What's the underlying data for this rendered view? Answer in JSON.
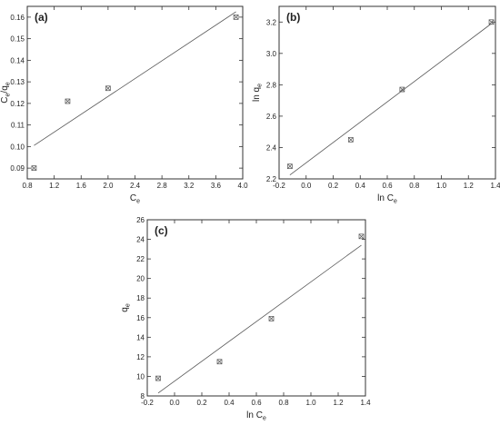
{
  "chart_data": [
    {
      "type": "scatter",
      "panel_label": "(a)",
      "xlabel": "C",
      "xlabel_sub": "e",
      "ylabel_parts": [
        [
          "C",
          "e"
        ],
        [
          "/q",
          "e"
        ]
      ],
      "xlim": [
        0.8,
        4.0
      ],
      "ylim": [
        0.085,
        0.165
      ],
      "xticks": [
        "0.8",
        "1.2",
        "1.6",
        "2.0",
        "2.4",
        "2.8",
        "3.2",
        "3.6",
        "4.0"
      ],
      "yticks": [
        "0.09",
        "0.10",
        "0.11",
        "0.12",
        "0.13",
        "0.14",
        "0.15",
        "0.16"
      ],
      "points": [
        {
          "x": 0.9,
          "y": 0.09
        },
        {
          "x": 1.4,
          "y": 0.121
        },
        {
          "x": 2.0,
          "y": 0.127
        },
        {
          "x": 3.9,
          "y": 0.16
        }
      ],
      "fit_line": {
        "x": [
          0.9,
          3.9
        ],
        "y": [
          0.1005,
          0.1625
        ]
      }
    },
    {
      "type": "scatter",
      "panel_label": "(b)",
      "xlabel": "ln C",
      "xlabel_sub": "e",
      "ylabel_parts": [
        [
          "ln q",
          "e"
        ]
      ],
      "xlim": [
        -0.2,
        1.4
      ],
      "ylim": [
        2.2,
        3.3
      ],
      "xticks": [
        "-0.2",
        "0.0",
        "0.2",
        "0.4",
        "0.6",
        "0.8",
        "1.0",
        "1.2",
        "1.4"
      ],
      "yticks": [
        "2.2",
        "2.4",
        "2.6",
        "2.8",
        "3.0",
        "3.2"
      ],
      "points": [
        {
          "x": -0.12,
          "y": 2.28
        },
        {
          "x": 0.33,
          "y": 2.45
        },
        {
          "x": 0.71,
          "y": 2.77
        },
        {
          "x": 1.37,
          "y": 3.2
        }
      ],
      "fit_line": {
        "x": [
          -0.12,
          1.37
        ],
        "y": [
          2.225,
          3.19
        ]
      }
    },
    {
      "type": "scatter",
      "panel_label": "(c)",
      "xlabel": "ln C",
      "xlabel_sub": "e",
      "ylabel_parts": [
        [
          "q",
          "e"
        ]
      ],
      "xlim": [
        -0.2,
        1.4
      ],
      "ylim": [
        8,
        26
      ],
      "xticks": [
        "-0.2",
        "0.0",
        "0.2",
        "0.4",
        "0.6",
        "0.8",
        "1.0",
        "1.2",
        "1.4"
      ],
      "yticks": [
        "8",
        "10",
        "12",
        "14",
        "16",
        "18",
        "20",
        "22",
        "24",
        "26"
      ],
      "points": [
        {
          "x": -0.12,
          "y": 9.8
        },
        {
          "x": 0.33,
          "y": 11.5
        },
        {
          "x": 0.71,
          "y": 15.9
        },
        {
          "x": 1.37,
          "y": 24.3
        }
      ],
      "fit_line": {
        "x": [
          -0.12,
          1.37
        ],
        "y": [
          8.3,
          23.4
        ]
      }
    }
  ]
}
